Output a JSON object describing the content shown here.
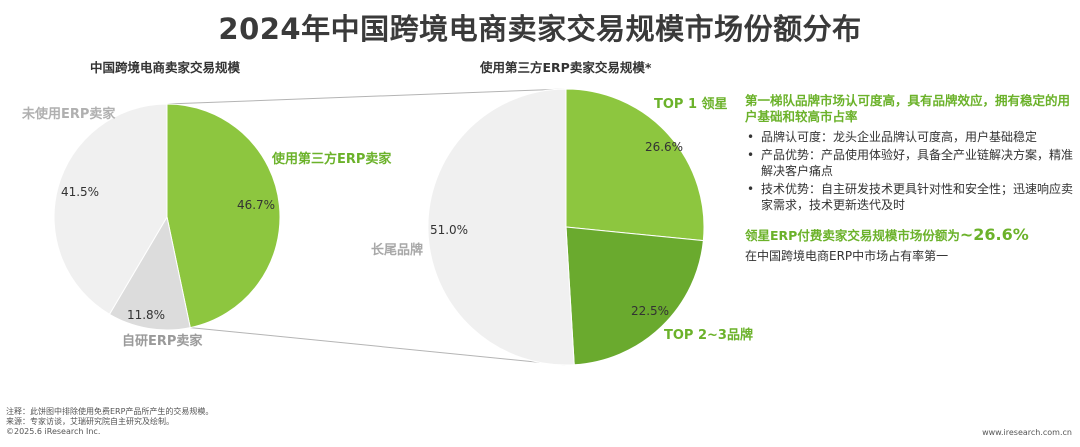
{
  "title": "2024年中国跨境电商卖家交易规模市场份额分布",
  "chart_data": [
    {
      "type": "pie",
      "title": "中国跨境电商卖家交易规模",
      "unit": "%",
      "slices": [
        {
          "label": "使用第三方ERP卖家",
          "value": 46.7,
          "value_label": "46.7%",
          "color": "#8dc63f"
        },
        {
          "label": "自研ERP卖家",
          "value": 11.8,
          "value_label": "11.8%",
          "color": "#dcdcdc"
        },
        {
          "label": "未使用ERP卖家",
          "value": 41.5,
          "value_label": "41.5%",
          "color": "#f0f0f0"
        }
      ]
    },
    {
      "type": "pie",
      "title": "使用第三方ERP卖家交易规模*",
      "unit": "%",
      "slices": [
        {
          "label": "TOP 1 领星",
          "value": 26.6,
          "value_label": "26.6%",
          "color": "#8dc63f"
        },
        {
          "label": "TOP 2~3品牌",
          "value": 22.5,
          "value_label": "22.5%",
          "color": "#6aaa2e"
        },
        {
          "label": "长尾品牌",
          "value": 51.0,
          "value_label": "51.0%",
          "color": "#f0f0f0"
        }
      ]
    }
  ],
  "colors": {
    "accent": "#6bb22a",
    "connector": "#b4b4b4"
  },
  "side": {
    "heading": "第一梯队品牌市场认可度高，具有品牌效应，拥有稳定的用户基础和较高市占率",
    "bullet_symbol": "•",
    "bullets": [
      "品牌认可度：龙头企业品牌认可度高，用户基础稳定",
      "产品优势：产品使用体验好，具备全产业链解决方案，精准解决客户痛点",
      "技术优势：自主研发技术更具针对性和安全性；迅速响应卖家需求，技术更新迭代及时"
    ],
    "highlight_prefix": "领星ERP付费卖家交易规模市场份额为",
    "highlight_value": "~26.6%",
    "sub_text": "在中国跨境电商ERP中市场占有率第一"
  },
  "footer": {
    "note": "注释：此饼图中排除使用免费ERP产品所产生的交易规模。",
    "source": "来源：专家访谈，艾瑞研究院自主研究及绘制。",
    "copyright": "©2025.6 iResearch Inc.",
    "website": "www.iresearch.com.cn"
  }
}
